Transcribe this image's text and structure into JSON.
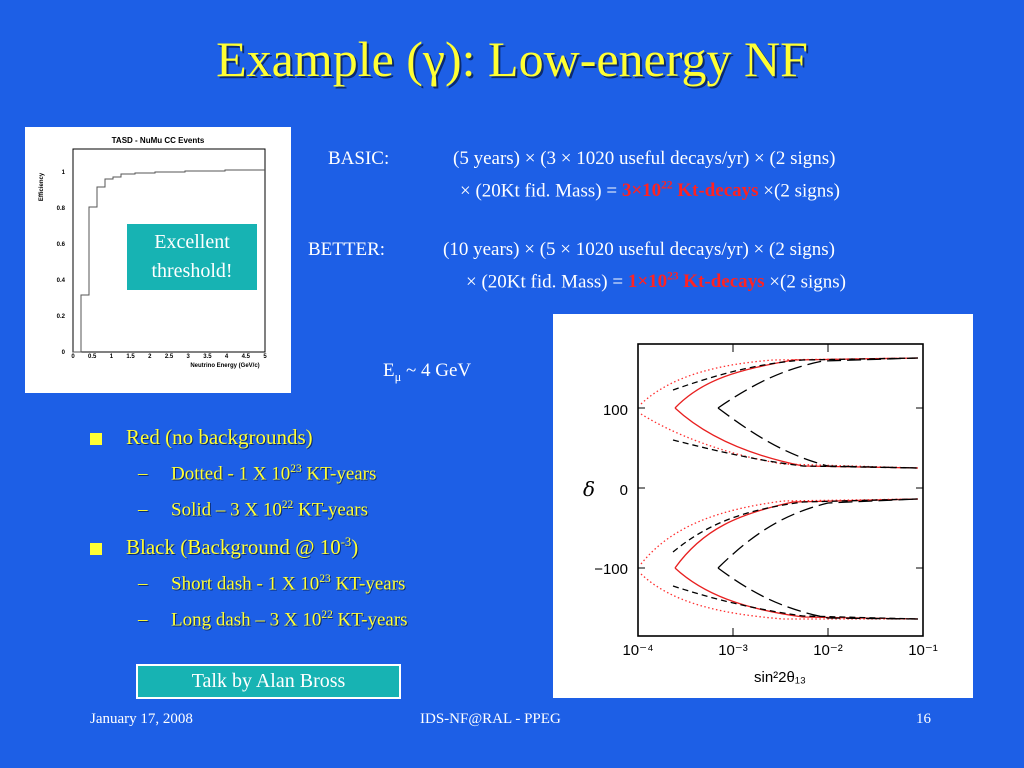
{
  "title": "Example (γ): Low-energy NF",
  "efficiency_plot": {
    "title": "TASD - NuMu CC Events",
    "ylabel": "Efficiency",
    "xlabel": "Neutrino Energy (GeV/c)",
    "x_ticks": [
      "0",
      "0.5",
      "1",
      "1.5",
      "2",
      "2.5",
      "3",
      "3.5",
      "4",
      "4.5",
      "5"
    ],
    "y_ticks": [
      "0",
      "0.2",
      "0.4",
      "0.6",
      "0.8",
      "1"
    ],
    "callout": [
      "Excellent",
      "threshold!"
    ]
  },
  "calc": {
    "basic_label": "BASIC:",
    "basic_line1": "(5 years) × (3 × 1020 useful decays/yr) × (2 signs)",
    "basic_line2_pre": "× (20Kt fid. Mass) =",
    "basic_value": "3×10",
    "basic_exp": "22",
    "basic_unit": "Kt-decays",
    "basic_post": "×(2 signs)",
    "better_label": "BETTER:",
    "better_line1": "(10 years) × (5 × 1020 useful decays/yr) × (2 signs)",
    "better_line2_pre": "× (20Kt fid. Mass) =",
    "better_value": "1×10",
    "better_exp": "23",
    "better_unit": "Kt-decays",
    "better_post": "×(2 signs)"
  },
  "emu": {
    "base": "E",
    "sub": "μ",
    "rest": " ~ 4 GeV"
  },
  "bullets": {
    "red": "Red (no backgrounds)",
    "dotted_pre": "Dotted - 1 X 10",
    "dotted_exp": "23",
    "dotted_post": " KT-years",
    "solid_pre": "Solid – 3 X 10",
    "solid_exp": "22",
    "solid_post": " KT-years",
    "black_pre": "Black (Background @ 10",
    "black_exp": "-3",
    "black_post": ")",
    "short_pre": "Short dash - 1 X 10",
    "short_exp": "23",
    "short_post": " KT-years",
    "long_pre": "Long dash – 3 X 10",
    "long_exp": "22",
    "long_post": " KT-years"
  },
  "talk": "Talk by Alan Bross",
  "delta_plot": {
    "ylabel": "δ",
    "xlabel": "sin²2θ₁₃",
    "y_ticks": [
      "100",
      "0",
      "−100"
    ],
    "x_ticks": [
      "10⁻⁴",
      "10⁻³",
      "10⁻²",
      "10⁻¹"
    ]
  },
  "footer": {
    "date": "January 17, 2008",
    "center": "IDS-NF@RAL - PPEG",
    "page": "16"
  }
}
